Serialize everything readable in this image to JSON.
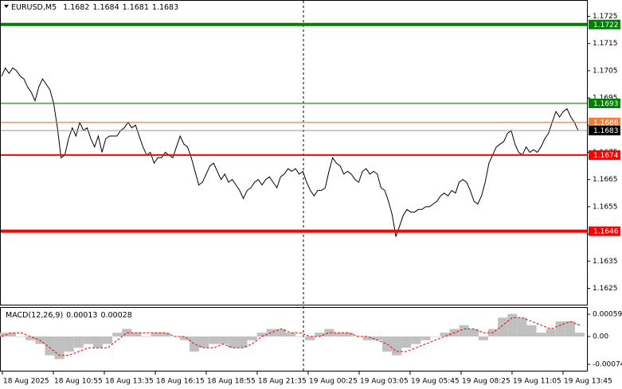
{
  "chart_data": [
    {
      "type": "line",
      "title": "EURUSD,M5",
      "ohlc": [
        1.1682,
        1.1684,
        1.1681,
        1.1683
      ],
      "color": "#000000",
      "values": [
        1.1703,
        1.1706,
        1.1704,
        1.1706,
        1.1705,
        1.1703,
        1.1702,
        1.1699,
        1.1697,
        1.1694,
        1.1699,
        1.1702,
        1.17,
        1.1698,
        1.1693,
        1.1684,
        1.1673,
        1.1674,
        1.168,
        1.1684,
        1.1681,
        1.1686,
        1.1683,
        1.1684,
        1.168,
        1.1677,
        1.1681,
        1.1675,
        1.168,
        1.1681,
        1.1681,
        1.1681,
        1.1683,
        1.1684,
        1.1686,
        1.1684,
        1.1685,
        1.1681,
        1.1677,
        1.1674,
        1.1675,
        1.1671,
        1.1673,
        1.1673,
        1.1675,
        1.1674,
        1.1673,
        1.1677,
        1.1681,
        1.1678,
        1.1677,
        1.1673,
        1.1668,
        1.1663,
        1.1664,
        1.1667,
        1.167,
        1.1671,
        1.1668,
        1.1665,
        1.1667,
        1.1664,
        1.1665,
        1.1663,
        1.1661,
        1.1658,
        1.1661,
        1.1662,
        1.1664,
        1.1665,
        1.1663,
        1.1665,
        1.1666,
        1.1664,
        1.1662,
        1.1666,
        1.1667,
        1.1669,
        1.1668,
        1.1669,
        1.1667,
        1.1668,
        1.1664,
        1.1661,
        1.1659,
        1.1661,
        1.1661,
        1.1662,
        1.1668,
        1.1673,
        1.1671,
        1.167,
        1.1667,
        1.1668,
        1.1667,
        1.1665,
        1.1664,
        1.1668,
        1.1669,
        1.1667,
        1.1668,
        1.1667,
        1.1662,
        1.1661,
        1.1657,
        1.1652,
        1.1644,
        1.1648,
        1.1652,
        1.1654,
        1.1653,
        1.1653,
        1.1654,
        1.1654,
        1.1655,
        1.1655,
        1.1656,
        1.1657,
        1.1659,
        1.166,
        1.1659,
        1.1661,
        1.166,
        1.1664,
        1.1665,
        1.1664,
        1.1661,
        1.1657,
        1.1656,
        1.1659,
        1.1664,
        1.1671,
        1.1674,
        1.1677,
        1.1678,
        1.1679,
        1.1682,
        1.1683,
        1.1678,
        1.1675,
        1.1674,
        1.1677,
        1.1675,
        1.1676,
        1.1675,
        1.1677,
        1.168,
        1.1682,
        1.1686,
        1.169,
        1.1688,
        1.169,
        1.1691,
        1.1688,
        1.1686,
        1.1683
      ],
      "ylim": [
        1.1619,
        1.1731
      ],
      "yticks": [
        1.1725,
        1.1715,
        1.1705,
        1.1695,
        1.1685,
        1.1675,
        1.1665,
        1.1655,
        1.1645,
        1.1635,
        1.1625
      ],
      "levels": [
        {
          "value": 1.1722,
          "color": "#008000",
          "style": "thick"
        },
        {
          "value": 1.1693,
          "color": "#008000",
          "style": "thin"
        },
        {
          "value": 1.1686,
          "color": "#f07f3c",
          "style": "thin"
        },
        {
          "value": 1.1683,
          "color": "#000000",
          "style": "current"
        },
        {
          "value": 1.1674,
          "color": "#ff0000",
          "style": "medium"
        },
        {
          "value": 1.1646,
          "color": "#ff0000",
          "style": "thick"
        }
      ],
      "time_labels": [
        "18 Aug 2025",
        "18 Aug 10:55",
        "18 Aug 13:35",
        "18 Aug 16:15",
        "18 Aug 18:55",
        "18 Aug 21:35",
        "19 Aug 00:25",
        "19 Aug 03:05",
        "19 Aug 05:45",
        "19 Aug 08:25",
        "19 Aug 11:05",
        "19 Aug 13:45"
      ]
    },
    {
      "type": "macd",
      "title": "MACD(12,26,9)",
      "current": [
        0.00013,
        0.00028
      ],
      "histogram": {
        "color": "#c0c0c0",
        "values": [
          0.0001,
          0.0001,
          0,
          -0.0001,
          -0.0002,
          -0.0005,
          -0.0006,
          -0.0004,
          -0.0003,
          -0.0002,
          -0.0003,
          -0.0002,
          0.0001,
          0.0002,
          0.0001,
          0,
          0.0001,
          0.0001,
          0,
          -0.0001,
          -0.0004,
          -0.0003,
          -0.0002,
          -0.0002,
          -0.0003,
          -0.0003,
          -0.0001,
          0.0001,
          0.0002,
          0.0002,
          0.0001,
          0,
          -0.0001,
          0.0001,
          0.0002,
          0.0001,
          0.0001,
          0,
          -0.0001,
          -0.0001,
          -0.0004,
          -0.0005,
          -0.0003,
          -0.0002,
          -0.0001,
          0,
          0.0001,
          0.0002,
          0.0003,
          0.0002,
          -0.0001,
          0.0002,
          0.0005,
          0.0006,
          0.0005,
          0.0003,
          0.0001,
          0.0002,
          0.0004,
          0.0004,
          0.0001
        ]
      },
      "signal": {
        "color": "#ff0000",
        "values": [
          0,
          0.0001,
          0.0001,
          0,
          -0.0001,
          -0.0003,
          -0.0005,
          -0.0005,
          -0.0004,
          -0.0003,
          -0.0003,
          -0.0003,
          -0.0001,
          0.0001,
          0.0001,
          0.0001,
          0.0001,
          0.0001,
          0,
          0,
          -0.0002,
          -0.0003,
          -0.0003,
          -0.0002,
          -0.0003,
          -0.0003,
          -0.0002,
          0,
          0.0001,
          0.0002,
          0.0001,
          0.0001,
          0,
          0,
          0.0001,
          0.0001,
          0.0001,
          0,
          0,
          -0.0001,
          -0.0002,
          -0.0004,
          -0.0004,
          -0.0003,
          -0.0002,
          -0.0001,
          0,
          0.0001,
          0.0002,
          0.0002,
          0.0001,
          0.0001,
          0.0003,
          0.0005,
          0.0005,
          0.0004,
          0.0003,
          0.0002,
          0.0003,
          0.0004,
          0.0003
        ]
      },
      "ylim": [
        -0.00093,
        0.00076
      ],
      "yticks": [
        0.00059,
        {
          "value": 0,
          "label": "0.00"
        },
        -0.00074
      ]
    }
  ]
}
